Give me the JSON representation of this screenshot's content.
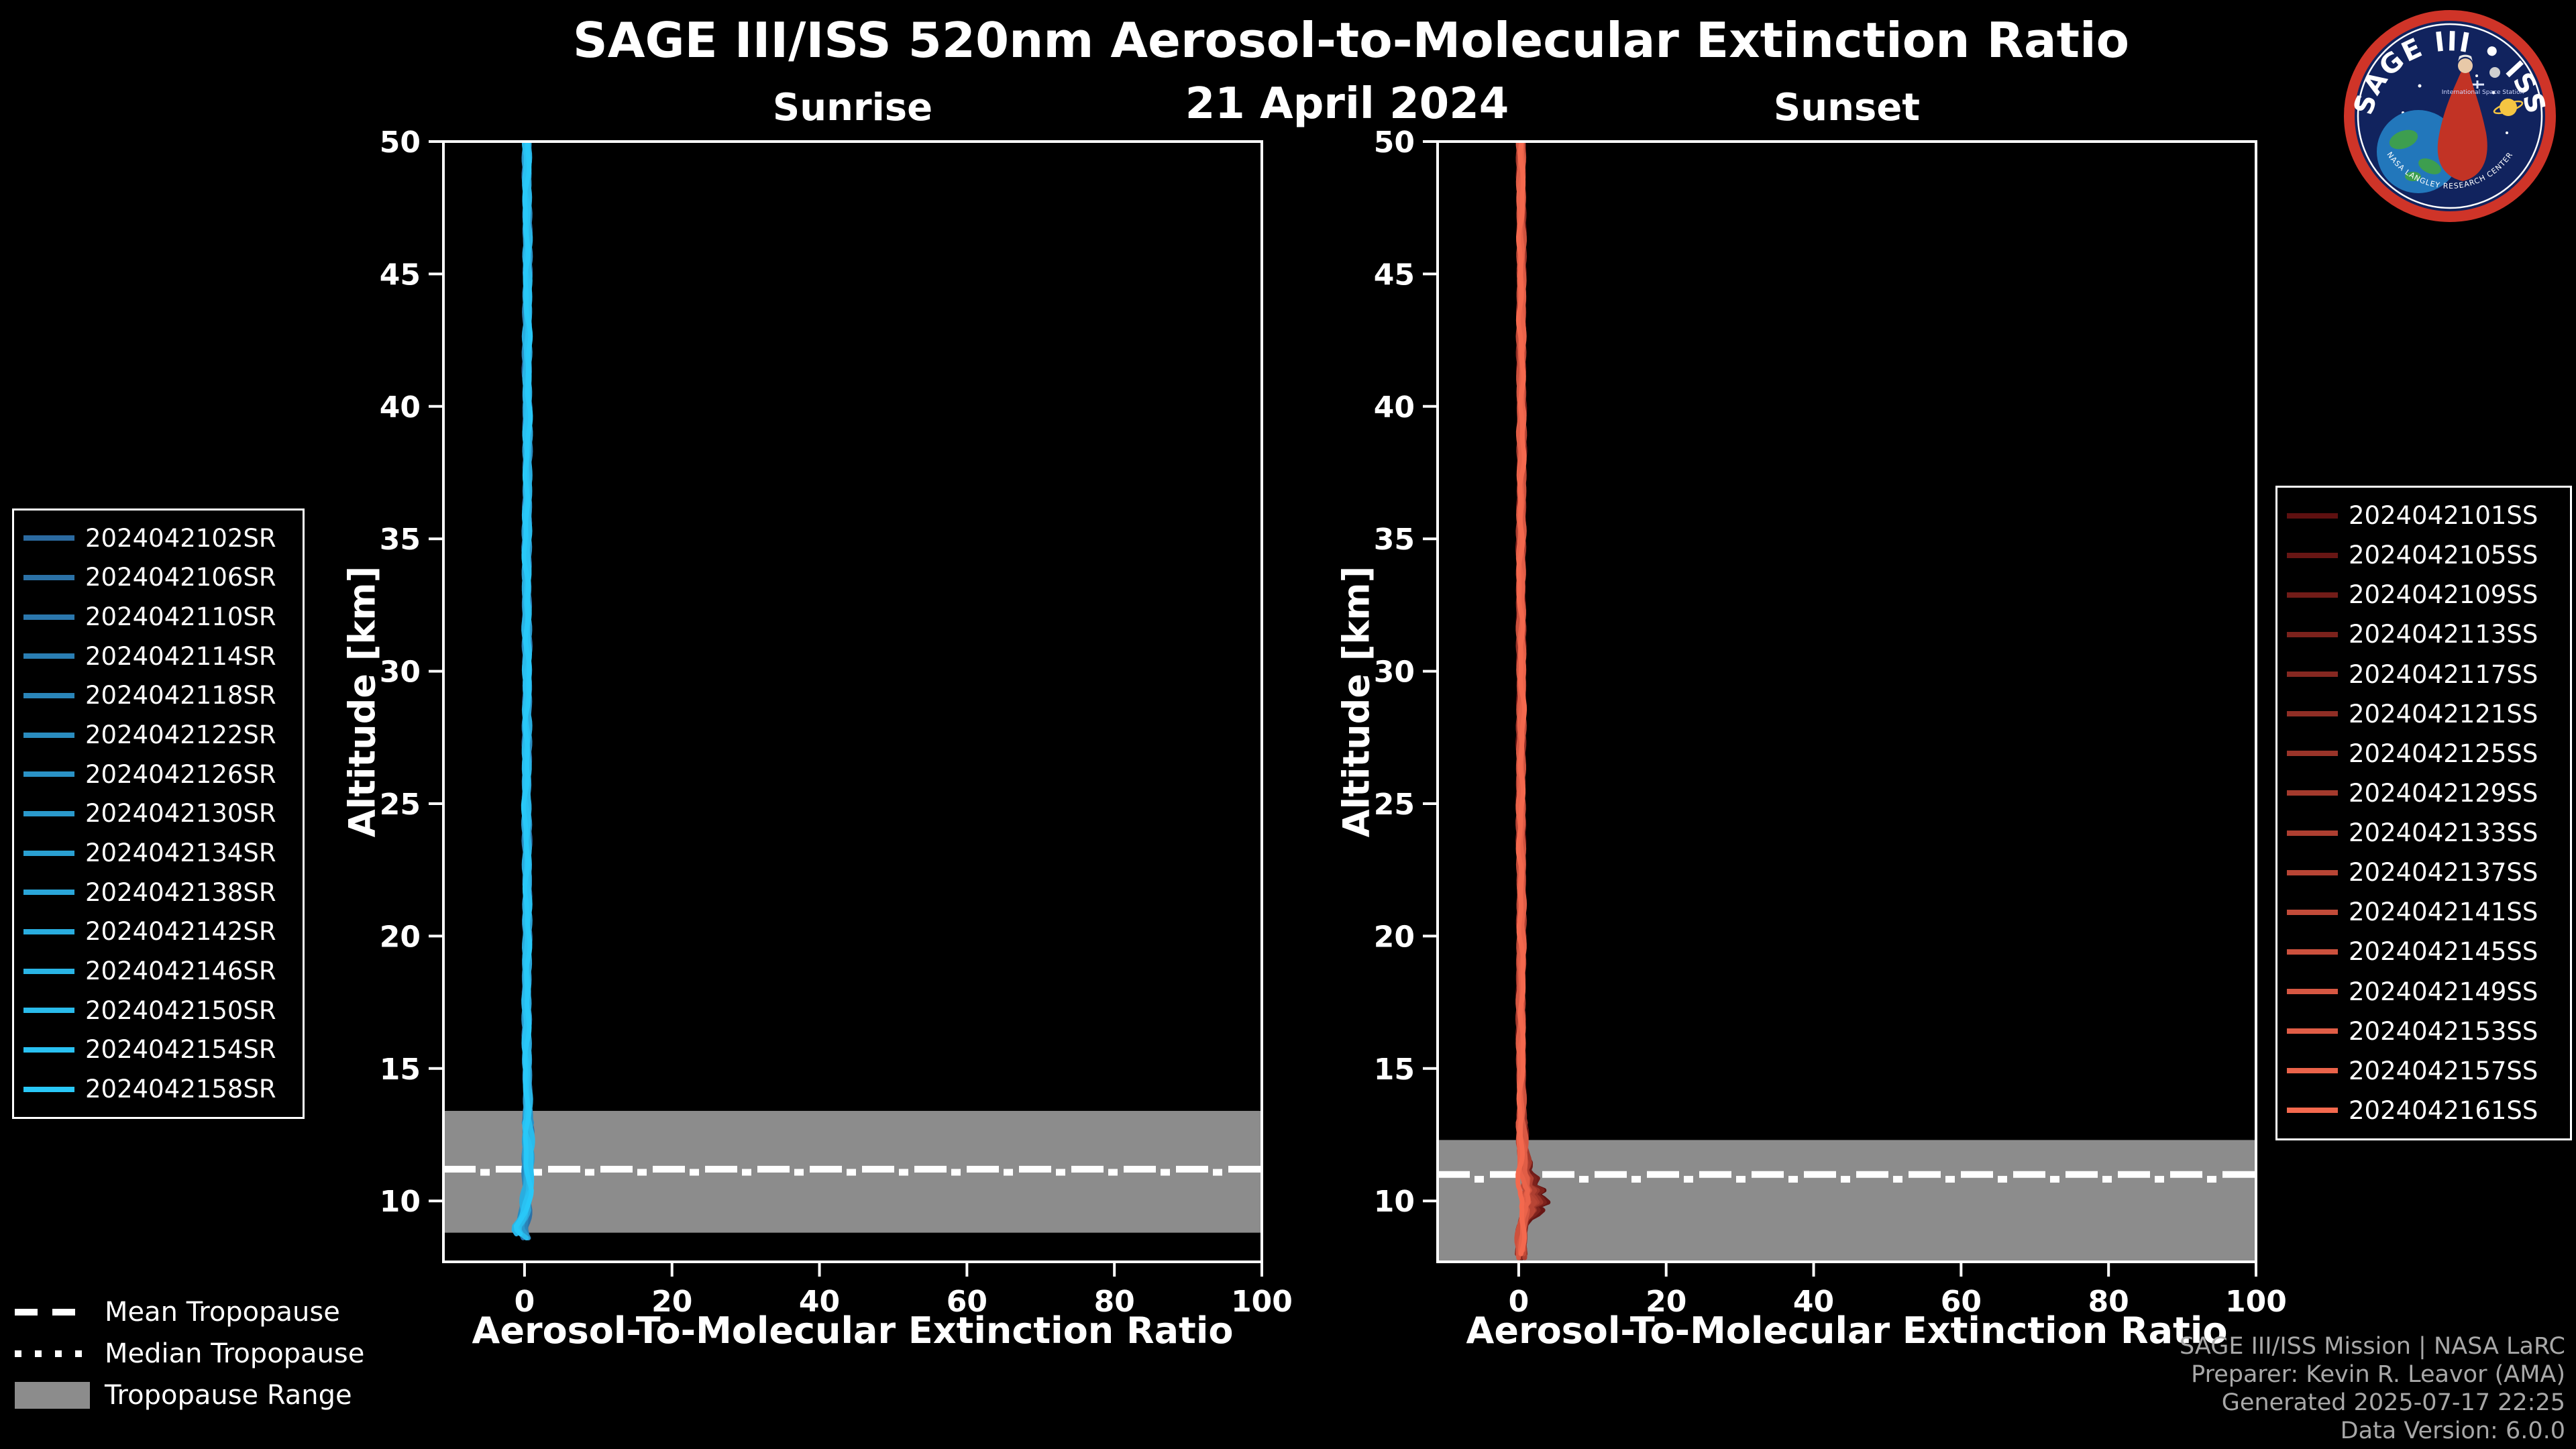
{
  "header": {
    "title": "SAGE III/ISS 520nm Aerosol-to-Molecular Extinction Ratio",
    "date": "21 April 2024"
  },
  "logo": {
    "title": "SAGE III • ISS",
    "subtitle": "International Space Station",
    "ring_text": "NASA LANGLEY RESEARCH CENTER"
  },
  "tropopause_legend": {
    "items": [
      {
        "style": "dashed",
        "label": "Mean Tropopause"
      },
      {
        "style": "dotted",
        "label": "Median Tropopause"
      },
      {
        "style": "patch",
        "label": "Tropopause Range"
      }
    ]
  },
  "credits": {
    "lines": [
      "SAGE III/ISS Mission | NASA LaRC",
      "Preparer: Kevin R. Leavor (AMA)",
      "Generated 2025-07-17 22:25",
      "Data Version: 6.0.0"
    ]
  },
  "chart_data": [
    {
      "id": "sunrise",
      "type": "line",
      "title": "Sunrise",
      "xlabel": "Aerosol-To-Molecular Extinction Ratio",
      "ylabel": "Altitude [km]",
      "xlim": [
        -11,
        100
      ],
      "ylim": [
        7.7,
        50
      ],
      "xticks": [
        0,
        20,
        40,
        60,
        80,
        100
      ],
      "yticks": [
        10,
        15,
        20,
        25,
        30,
        35,
        40,
        45,
        50
      ],
      "grid": false,
      "legend_position": "outside-left",
      "values_note": "All 15 sunrise profiles lie at ratio ~0 (±0.5) from 50 km down to ~9.5 km, with a small negative hook to about -2 near 9 km, ending ~8.6 km",
      "tropopause": {
        "range": [
          8.8,
          13.4
        ],
        "mean": 11.2,
        "median": 11.08
      },
      "profile_bottom": 8.6,
      "squiggle_scale": [
        0.15,
        1
      ],
      "base_profile": [
        [
          50,
          0.4
        ],
        [
          45,
          0.35
        ],
        [
          40,
          0.45
        ],
        [
          35,
          0.3
        ],
        [
          30,
          0.3
        ],
        [
          25,
          0.3
        ],
        [
          20,
          0.3
        ],
        [
          15,
          0.35
        ],
        [
          13,
          0.45
        ],
        [
          12,
          0.5
        ],
        [
          11,
          0.6
        ],
        [
          10.4,
          0.5
        ],
        [
          10,
          0.2
        ],
        [
          9.6,
          0
        ],
        [
          9.3,
          -0.6
        ],
        [
          9,
          -1.4
        ],
        [
          8.8,
          -1
        ],
        [
          8.6,
          0.3
        ]
      ],
      "series": [
        {
          "name": "2024042102SR",
          "color": "#2b6aa0"
        },
        {
          "name": "2024042106SR",
          "color": "#2b71a6"
        },
        {
          "name": "2024042110SR",
          "color": "#2b77ad"
        },
        {
          "name": "2024042114SR",
          "color": "#2a7eb3"
        },
        {
          "name": "2024042118SR",
          "color": "#2a85b9"
        },
        {
          "name": "2024042122SR",
          "color": "#2a8cbf"
        },
        {
          "name": "2024042126SR",
          "color": "#2a92c6"
        },
        {
          "name": "2024042130SR",
          "color": "#2a99cc"
        },
        {
          "name": "2024042134SR",
          "color": "#2aa0d2"
        },
        {
          "name": "2024042138SR",
          "color": "#2aa6d9"
        },
        {
          "name": "2024042142SR",
          "color": "#29addf"
        },
        {
          "name": "2024042146SR",
          "color": "#29b4e5"
        },
        {
          "name": "2024042150SR",
          "color": "#29bbeb"
        },
        {
          "name": "2024042154SR",
          "color": "#29c1f2"
        },
        {
          "name": "2024042158SR",
          "color": "#29c8f8"
        }
      ]
    },
    {
      "id": "sunset",
      "type": "line",
      "title": "Sunset",
      "xlabel": "Aerosol-To-Molecular Extinction Ratio",
      "ylabel": "Altitude [km]",
      "xlim": [
        -11,
        100
      ],
      "ylim": [
        7.7,
        50
      ],
      "xticks": [
        0,
        20,
        40,
        60,
        80,
        100
      ],
      "yticks": [
        10,
        15,
        20,
        25,
        30,
        35,
        40,
        45,
        50
      ],
      "grid": false,
      "legend_position": "outside-right",
      "values_note": "All 16 sunset profiles lie at ratio ~0 (±0.5) from 50 km down to ~12 km; darkest profiles zigzag to ratio ~3-5 between 11.5 and 9.5 km, ending ~7.8 km",
      "tropopause": {
        "range": [
          7.7,
          12.3
        ],
        "mean": 11.0,
        "median": 10.82
      },
      "profile_bottom": 7.8,
      "squiggle_scale": [
        1,
        0.08
      ],
      "base_profile": [
        [
          50,
          0.4
        ],
        [
          45,
          0.3
        ],
        [
          40,
          0.45
        ],
        [
          35,
          0.3
        ],
        [
          30,
          0.3
        ],
        [
          25,
          0.3
        ],
        [
          20,
          0.3
        ],
        [
          15,
          0.3
        ],
        [
          13,
          0.35
        ],
        [
          12.2,
          0.5
        ],
        [
          11.8,
          0.8
        ],
        [
          11.4,
          1.5
        ],
        [
          11.1,
          0.9
        ],
        [
          10.8,
          2.6
        ],
        [
          10.6,
          1.6
        ],
        [
          10.4,
          3.4
        ],
        [
          10.2,
          2.2
        ],
        [
          10,
          4.5
        ],
        [
          9.8,
          2.4
        ],
        [
          9.6,
          3.2
        ],
        [
          9.4,
          1.4
        ],
        [
          9.2,
          0.9
        ],
        [
          9,
          0.6
        ],
        [
          8.5,
          0.4
        ],
        [
          8,
          0.4
        ],
        [
          7.8,
          0.45
        ]
      ],
      "series": [
        {
          "name": "2024042101SS",
          "color": "#5e1010"
        },
        {
          "name": "2024042105SS",
          "color": "#681614"
        },
        {
          "name": "2024042109SS",
          "color": "#721c18"
        },
        {
          "name": "2024042113SS",
          "color": "#7c221c"
        },
        {
          "name": "2024042117SS",
          "color": "#862821"
        },
        {
          "name": "2024042121SS",
          "color": "#902e25"
        },
        {
          "name": "2024042125SS",
          "color": "#9a3429"
        },
        {
          "name": "2024042129SS",
          "color": "#a43a2d"
        },
        {
          "name": "2024042133SS",
          "color": "#ae3f31"
        },
        {
          "name": "2024042137SS",
          "color": "#b84535"
        },
        {
          "name": "2024042141SS",
          "color": "#c24b39"
        },
        {
          "name": "2024042145SS",
          "color": "#cc513d"
        },
        {
          "name": "2024042149SS",
          "color": "#d65742"
        },
        {
          "name": "2024042153SS",
          "color": "#e05d46"
        },
        {
          "name": "2024042157SS",
          "color": "#ea634a"
        },
        {
          "name": "2024042161SS",
          "color": "#f4694e"
        }
      ]
    }
  ]
}
